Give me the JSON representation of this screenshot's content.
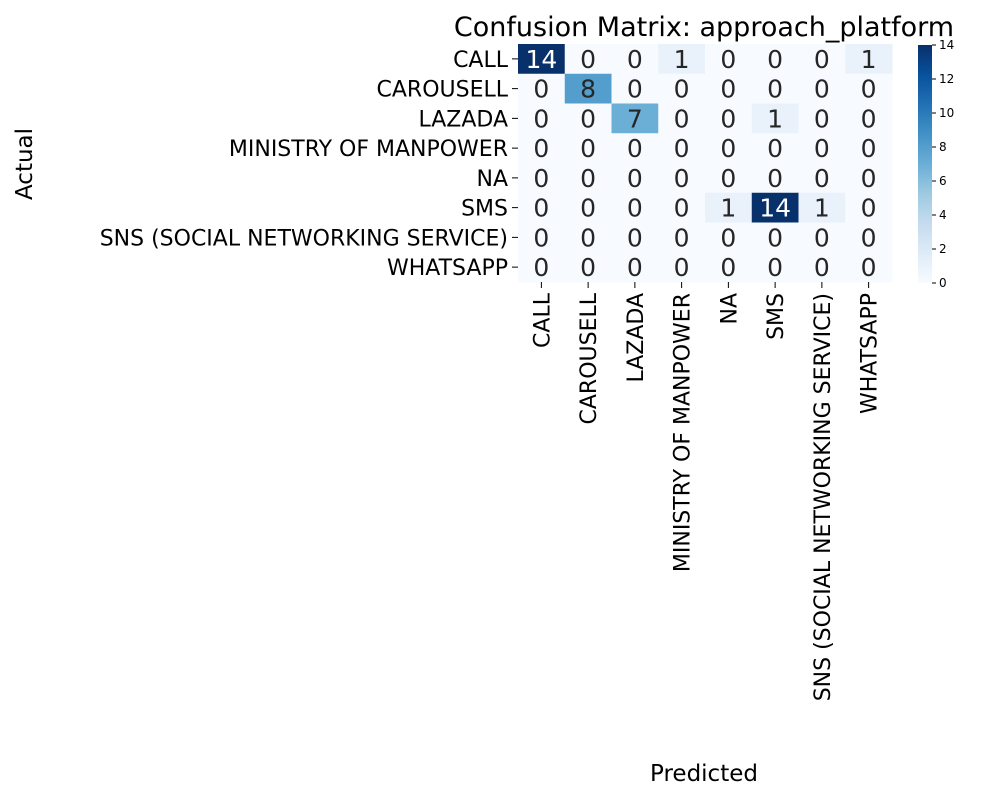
{
  "chart_data": {
    "type": "heatmap",
    "title": "Confusion Matrix: approach_platform",
    "xlabel": "Predicted",
    "ylabel": "Actual",
    "row_labels": [
      "CALL",
      "CAROUSELL",
      "LAZADA",
      "MINISTRY OF MANPOWER",
      "NA",
      "SMS",
      "SNS (SOCIAL NETWORKING SERVICE)",
      "WHATSAPP"
    ],
    "col_labels": [
      "CALL",
      "CAROUSELL",
      "LAZADA",
      "MINISTRY OF MANPOWER",
      "NA",
      "SMS",
      "SNS (SOCIAL NETWORKING SERVICE)",
      "WHATSAPP"
    ],
    "values": [
      [
        14,
        0,
        0,
        1,
        0,
        0,
        0,
        1
      ],
      [
        0,
        8,
        0,
        0,
        0,
        0,
        0,
        0
      ],
      [
        0,
        0,
        7,
        0,
        0,
        1,
        0,
        0
      ],
      [
        0,
        0,
        0,
        0,
        0,
        0,
        0,
        0
      ],
      [
        0,
        0,
        0,
        0,
        0,
        0,
        0,
        0
      ],
      [
        0,
        0,
        0,
        0,
        1,
        14,
        1,
        0
      ],
      [
        0,
        0,
        0,
        0,
        0,
        0,
        0,
        0
      ],
      [
        0,
        0,
        0,
        0,
        0,
        0,
        0,
        0
      ]
    ],
    "colorbar": {
      "min": 0,
      "max": 14,
      "ticks": [
        "0",
        "2",
        "4",
        "6",
        "8",
        "10",
        "12",
        "14"
      ]
    },
    "colormap": "Blues"
  }
}
